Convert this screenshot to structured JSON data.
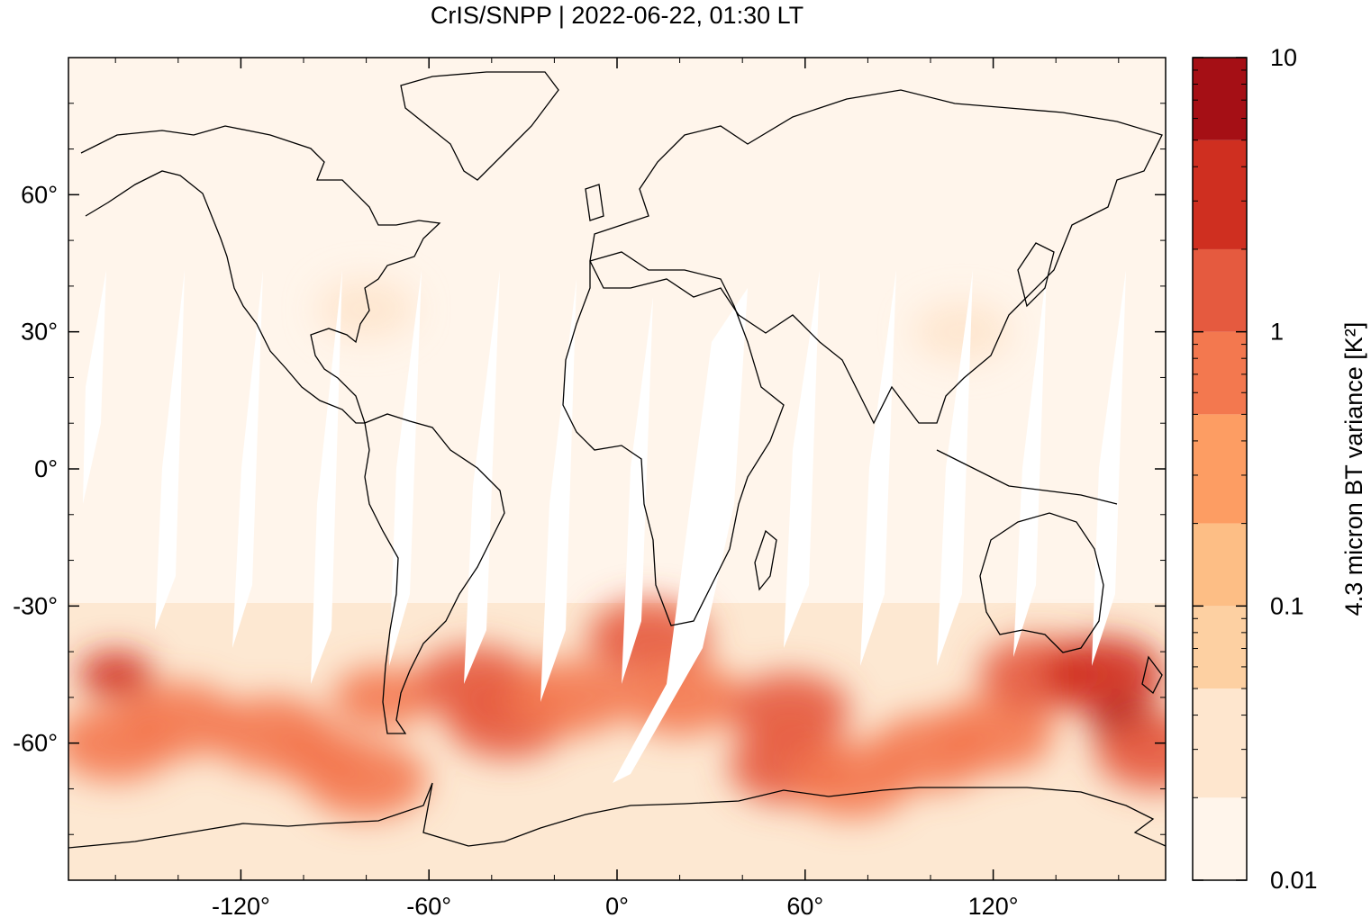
{
  "chart_data": {
    "type": "heatmap",
    "title": "CrIS/SNPP | 2022-06-22, 01:30 LT",
    "xlabel": "",
    "ylabel": "",
    "xlim": [
      -175,
      175
    ],
    "ylim": [
      -90,
      90
    ],
    "x_ticks": [
      -120,
      -60,
      0,
      60,
      120
    ],
    "x_tick_labels": [
      "-120°",
      "-60°",
      "0°",
      "60°",
      "120°"
    ],
    "y_ticks": [
      60,
      30,
      0,
      -30,
      -60
    ],
    "y_tick_labels": [
      "60°",
      "30°",
      "0°",
      "-30°",
      "-60°"
    ],
    "colorbar": {
      "label": "4.3 micron BT variance [K²]",
      "scale": "log",
      "range": [
        0.01,
        10
      ],
      "tick_values": [
        0.01,
        0.1,
        1,
        10
      ],
      "tick_labels": [
        "0.01",
        "0.1",
        "1",
        "10"
      ],
      "levels": [
        0.01,
        0.02,
        0.05,
        0.1,
        0.2,
        0.5,
        1,
        2,
        5,
        10
      ],
      "colors": [
        "#fff5eb",
        "#fee6ce",
        "#fdd0a2",
        "#fdbe85",
        "#fd9d63",
        "#f3784f",
        "#e55a3f",
        "#cf2f20",
        "#a50f15"
      ]
    },
    "regions": [
      {
        "lon": -160,
        "lat": -45,
        "value": 3.5
      },
      {
        "lon": -160,
        "lat": -60,
        "value": 0.8
      },
      {
        "lon": -140,
        "lat": -55,
        "value": 0.6
      },
      {
        "lon": -110,
        "lat": -58,
        "value": 0.7
      },
      {
        "lon": -95,
        "lat": -63,
        "value": 0.5
      },
      {
        "lon": -80,
        "lat": -68,
        "value": 0.6
      },
      {
        "lon": -75,
        "lat": -50,
        "value": 0.5
      },
      {
        "lon": -45,
        "lat": -47,
        "value": 1.5
      },
      {
        "lon": -35,
        "lat": -55,
        "value": 1.2
      },
      {
        "lon": -15,
        "lat": -50,
        "value": 0.9
      },
      {
        "lon": 10,
        "lat": -37,
        "value": 1.6
      },
      {
        "lon": 20,
        "lat": -50,
        "value": 0.6
      },
      {
        "lon": 55,
        "lat": -53,
        "value": 1.2
      },
      {
        "lon": 55,
        "lat": -65,
        "value": 1.4
      },
      {
        "lon": 75,
        "lat": -68,
        "value": 0.9
      },
      {
        "lon": 100,
        "lat": -62,
        "value": 0.8
      },
      {
        "lon": 120,
        "lat": -58,
        "value": 0.7
      },
      {
        "lon": 135,
        "lat": -45,
        "value": 1.0
      },
      {
        "lon": 155,
        "lat": -45,
        "value": 2.0
      },
      {
        "lon": 163,
        "lat": -56,
        "value": 5.0
      },
      {
        "lon": 172,
        "lat": -62,
        "value": 1.4
      },
      {
        "lon": 110,
        "lat": 30,
        "value": 0.03
      },
      {
        "lon": -80,
        "lat": 35,
        "value": 0.03
      }
    ]
  }
}
